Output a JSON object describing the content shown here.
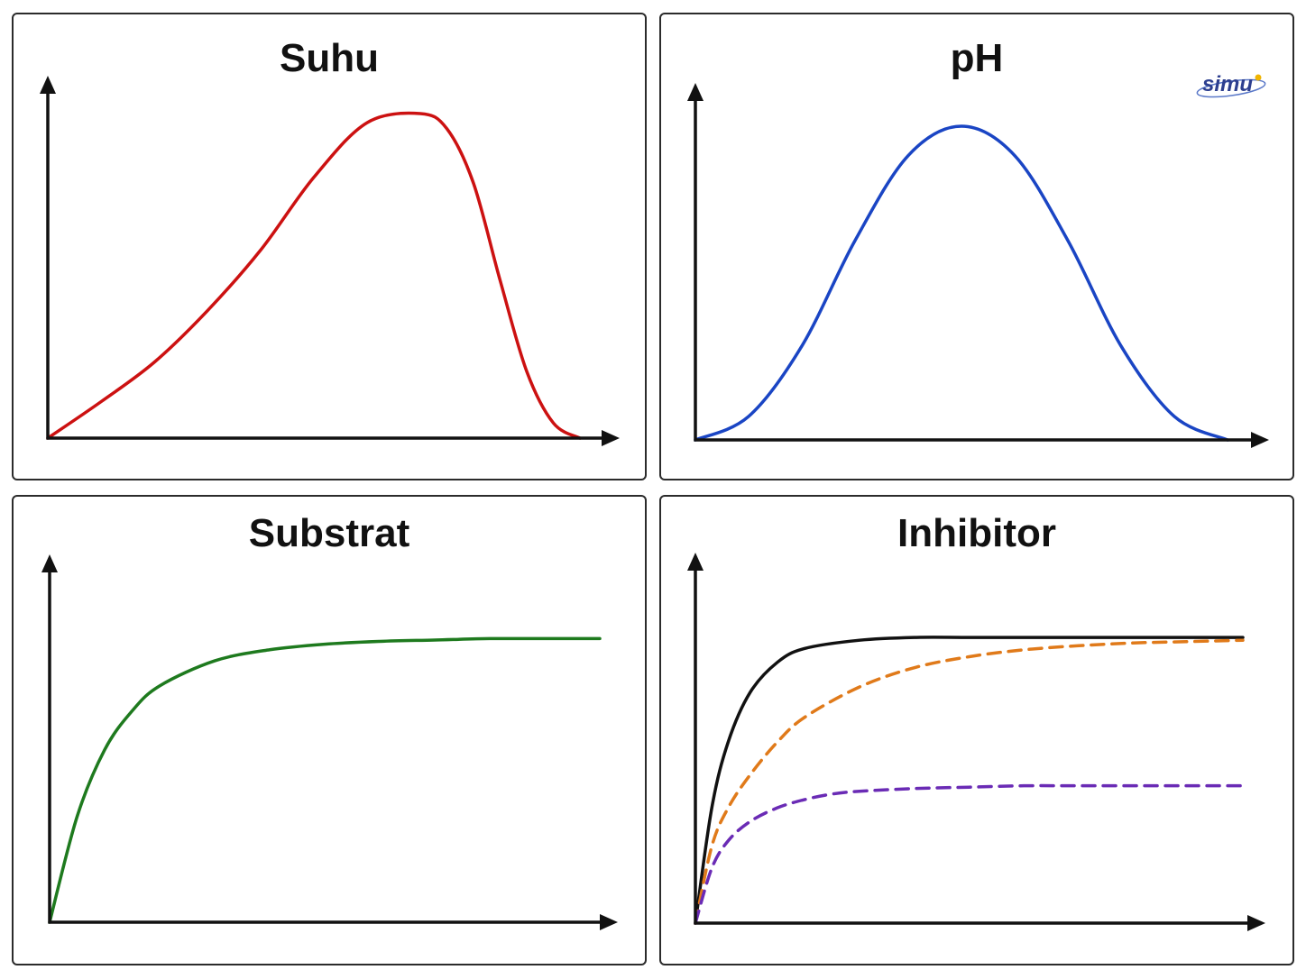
{
  "logo": {
    "text": "simu",
    "color": "#2d3f8f",
    "accent": "#f0b400"
  },
  "chart_data": [
    {
      "type": "line",
      "title": "Suhu",
      "xlabel": "",
      "ylabel": "",
      "xlim": [
        0,
        10
      ],
      "ylim": [
        0,
        1.2
      ],
      "grid": false,
      "axes_style": "arrows",
      "series": [
        {
          "color": "#cc1111",
          "dash": false,
          "x": [
            0,
            1,
            2,
            3,
            4,
            5,
            6,
            7,
            7.5,
            8,
            8.5,
            9,
            9.5,
            10
          ],
          "y": [
            0,
            0.12,
            0.25,
            0.42,
            0.62,
            0.86,
            1.04,
            1.07,
            1.02,
            0.84,
            0.52,
            0.22,
            0.05,
            0
          ]
        }
      ]
    },
    {
      "type": "line",
      "title": "pH",
      "xlabel": "",
      "ylabel": "",
      "xlim": [
        0,
        10
      ],
      "ylim": [
        0,
        1.2
      ],
      "grid": false,
      "axes_style": "arrows",
      "series": [
        {
          "color": "#1a45c4",
          "dash": false,
          "x": [
            0,
            1,
            2,
            3,
            4,
            5,
            6,
            7,
            8,
            9,
            10
          ],
          "y": [
            0,
            0.08,
            0.32,
            0.68,
            0.97,
            1.07,
            0.97,
            0.68,
            0.32,
            0.08,
            0
          ]
        }
      ]
    },
    {
      "type": "line",
      "title": "Substrat",
      "xlabel": "",
      "ylabel": "",
      "xlim": [
        0,
        10
      ],
      "ylim": [
        0,
        1.2
      ],
      "grid": false,
      "axes_style": "arrows",
      "series": [
        {
          "color": "#1e7a1e",
          "dash": false,
          "x": [
            0,
            0.5,
            1,
            1.5,
            2,
            3,
            4,
            5,
            6,
            7,
            8,
            9,
            10
          ],
          "y": [
            0,
            0.38,
            0.62,
            0.76,
            0.85,
            0.94,
            0.98,
            1.0,
            1.01,
            1.015,
            1.02,
            1.02,
            1.02
          ]
        }
      ]
    },
    {
      "type": "line",
      "title": "Inhibitor",
      "xlabel": "",
      "ylabel": "",
      "xlim": [
        0,
        10
      ],
      "ylim": [
        0,
        1.2
      ],
      "grid": false,
      "axes_style": "arrows",
      "series": [
        {
          "color": "#111111",
          "dash": false,
          "x": [
            0,
            0.3,
            0.6,
            1,
            1.5,
            2,
            3,
            4,
            5,
            6,
            7,
            8,
            9,
            10
          ],
          "y": [
            0,
            0.42,
            0.66,
            0.84,
            0.95,
            1.0,
            1.03,
            1.04,
            1.04,
            1.04,
            1.04,
            1.04,
            1.04,
            1.04
          ]
        },
        {
          "color": "#e07a1a",
          "dash": true,
          "x": [
            0,
            0.3,
            0.6,
            1,
            1.5,
            2,
            3,
            4,
            5,
            6,
            7,
            8,
            9,
            10
          ],
          "y": [
            0,
            0.28,
            0.42,
            0.54,
            0.66,
            0.75,
            0.86,
            0.93,
            0.97,
            0.995,
            1.01,
            1.02,
            1.025,
            1.03
          ]
        },
        {
          "color": "#6a2bb5",
          "dash": true,
          "x": [
            0,
            0.3,
            0.6,
            1,
            1.5,
            2,
            2.5,
            3,
            4,
            5,
            6,
            7,
            8,
            9,
            10
          ],
          "y": [
            0,
            0.2,
            0.3,
            0.37,
            0.42,
            0.45,
            0.47,
            0.48,
            0.49,
            0.495,
            0.5,
            0.5,
            0.5,
            0.5,
            0.5
          ]
        }
      ]
    }
  ]
}
